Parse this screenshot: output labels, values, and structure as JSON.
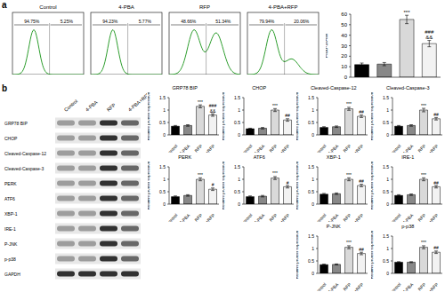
{
  "panel_labels": [
    "a",
    "b"
  ],
  "flow": [
    {
      "title": "Control",
      "left": "94.75%",
      "right": "5.25%"
    },
    {
      "title": "4-PBA",
      "left": "94.23%",
      "right": "5.77%"
    },
    {
      "title": "RFP",
      "left": "48.66%",
      "right": "51.34%"
    },
    {
      "title": "4-PBA+RFP",
      "left": "79.94%",
      "right": "20.06%"
    }
  ],
  "blot": {
    "columns": [
      "Control",
      "4-PBA",
      "RFP",
      "4-PBA+RFP"
    ],
    "rows": [
      "GRP78 BIP",
      "CHOP",
      "Cleaved-Caspase-12",
      "Cleaved-Caspase-3",
      "PERK",
      "ATF6",
      "XBP-1",
      "IRE-1",
      "P-JNK",
      "p-p38",
      "GAPDH"
    ]
  },
  "chart_data": [
    {
      "type": "bar",
      "categories": [
        null,
        null,
        null,
        null
      ],
      "values": [
        12,
        12.5,
        55,
        32
      ],
      "errors": [
        1.5,
        1.5,
        4,
        3
      ],
      "colors": [
        "#000000",
        "#888888",
        "#d9d9d9",
        "#f2f2f2"
      ],
      "ylabel": "Fluo-3/AM",
      "ylim": [
        0,
        60
      ],
      "yticks": [
        0,
        10,
        20,
        30,
        40,
        50,
        60
      ],
      "tick_labels": "y",
      "annotations": [
        null,
        null,
        [
          "***"
        ],
        [
          "###",
          "&&"
        ]
      ]
    },
    {
      "type": "bar",
      "title": "GRP78 BIP",
      "categories": [
        "Control",
        "4-PBA",
        "RFP",
        "4-PBA+RFP"
      ],
      "values": [
        0.35,
        0.38,
        1.15,
        0.8
      ],
      "errors": [
        0.03,
        0.03,
        0.06,
        0.05
      ],
      "colors": [
        "#000000",
        "#888888",
        "#d9d9d9",
        "#f2f2f2"
      ],
      "ylabel": "Relative protein expression",
      "ylim": [
        0,
        1.5
      ],
      "yticks": [
        0,
        0.5,
        1,
        1.5
      ],
      "annotations": [
        null,
        null,
        [
          "***"
        ],
        [
          "###",
          "&&"
        ]
      ]
    },
    {
      "type": "bar",
      "title": "CHOP",
      "categories": [
        "Control",
        "4-PBA",
        "RFP",
        "4-PBA+RFP"
      ],
      "values": [
        0.25,
        0.27,
        1.0,
        0.6
      ],
      "errors": [
        0.02,
        0.03,
        0.06,
        0.05
      ],
      "colors": [
        "#000000",
        "#888888",
        "#d9d9d9",
        "#f2f2f2"
      ],
      "ylabel": "Relative protein expression",
      "ylim": [
        0,
        1.5
      ],
      "yticks": [
        0,
        0.5,
        1,
        1.5
      ],
      "annotations": [
        null,
        null,
        [
          "***"
        ],
        [
          "##"
        ]
      ]
    },
    {
      "type": "bar",
      "title": "Cleaved-Caspase-12",
      "categories": [
        "Control",
        "4-PBA",
        "RFP",
        "4-PBA+RFP"
      ],
      "values": [
        0.3,
        0.33,
        1.05,
        0.75
      ],
      "errors": [
        0.03,
        0.03,
        0.06,
        0.05
      ],
      "colors": [
        "#000000",
        "#888888",
        "#d9d9d9",
        "#f2f2f2"
      ],
      "ylabel": "Relative protein expression",
      "ylim": [
        0,
        1.5
      ],
      "yticks": [
        0,
        0.5,
        1,
        1.5
      ],
      "annotations": [
        null,
        null,
        [
          "***"
        ],
        [
          "##"
        ]
      ]
    },
    {
      "type": "bar",
      "title": "Cleaved-Caspase-3",
      "categories": [
        "Control",
        "4-PBA",
        "RFP",
        "4-PBA+RFP"
      ],
      "values": [
        0.35,
        0.38,
        1.0,
        0.65
      ],
      "errors": [
        0.03,
        0.03,
        0.07,
        0.05
      ],
      "colors": [
        "#000000",
        "#888888",
        "#d9d9d9",
        "#f2f2f2"
      ],
      "ylabel": "Relative protein expression",
      "ylim": [
        0,
        1.5
      ],
      "yticks": [
        0,
        0.5,
        1,
        1.5
      ],
      "annotations": [
        null,
        null,
        [
          "***"
        ],
        [
          "##"
        ]
      ]
    },
    {
      "type": "bar",
      "title": "PERK",
      "categories": [
        "Control",
        "4-PBA",
        "RFP",
        "4-PBA+RFP"
      ],
      "values": [
        0.3,
        0.35,
        1.0,
        0.6
      ],
      "errors": [
        0.03,
        0.03,
        0.06,
        0.05
      ],
      "colors": [
        "#000000",
        "#888888",
        "#d9d9d9",
        "#f2f2f2"
      ],
      "ylabel": "Relative protein expression",
      "ylim": [
        0,
        1.5
      ],
      "yticks": [
        0,
        0.5,
        1,
        1.5
      ],
      "annotations": [
        null,
        null,
        [
          "***"
        ],
        [
          "#"
        ]
      ]
    },
    {
      "type": "bar",
      "title": "ATF6",
      "categories": [
        "Control",
        "4-PBA",
        "RFP",
        "4-PBA+RFP"
      ],
      "values": [
        0.3,
        0.32,
        1.05,
        0.7
      ],
      "errors": [
        0.03,
        0.03,
        0.06,
        0.05
      ],
      "colors": [
        "#000000",
        "#888888",
        "#d9d9d9",
        "#f2f2f2"
      ],
      "ylabel": "Relative protein expression",
      "ylim": [
        0,
        1.5
      ],
      "yticks": [
        0,
        0.5,
        1,
        1.5
      ],
      "annotations": [
        null,
        null,
        [
          "***"
        ],
        [
          "#"
        ]
      ]
    },
    {
      "type": "bar",
      "title": "XBP-1",
      "categories": [
        "Control",
        "4-PBA",
        "RFP",
        "4-PBA+RFP"
      ],
      "values": [
        0.4,
        0.42,
        1.0,
        0.75
      ],
      "errors": [
        0.03,
        0.03,
        0.06,
        0.05
      ],
      "colors": [
        "#000000",
        "#888888",
        "#d9d9d9",
        "#f2f2f2"
      ],
      "ylabel": "Relative protein expression",
      "ylim": [
        0,
        1.5
      ],
      "yticks": [
        0,
        0.5,
        1,
        1.5
      ],
      "annotations": [
        null,
        null,
        [
          "***"
        ],
        [
          "##"
        ]
      ]
    },
    {
      "type": "bar",
      "title": "IRE-1",
      "categories": [
        "Control",
        "4-PBA",
        "RFP",
        "4-PBA+RFP"
      ],
      "values": [
        0.35,
        0.38,
        1.0,
        0.7
      ],
      "errors": [
        0.03,
        0.03,
        0.06,
        0.05
      ],
      "colors": [
        "#000000",
        "#888888",
        "#d9d9d9",
        "#f2f2f2"
      ],
      "ylabel": "Relative protein expression",
      "ylim": [
        0,
        1.5
      ],
      "yticks": [
        0,
        0.5,
        1,
        1.5
      ],
      "annotations": [
        null,
        null,
        [
          "***"
        ],
        [
          "##"
        ]
      ]
    },
    {
      "type": "bar",
      "title": "P-JNK",
      "categories": [
        "Control",
        "4-PBA",
        "RFP",
        "4-PBA+RFP"
      ],
      "values": [
        0.35,
        0.36,
        1.05,
        0.8
      ],
      "errors": [
        0.02,
        0.02,
        0.06,
        0.05
      ],
      "colors": [
        "#000000",
        "#888888",
        "#d9d9d9",
        "#f2f2f2"
      ],
      "ylabel": "Relative protein expression",
      "ylim": [
        0,
        1.5
      ],
      "yticks": [
        0,
        0.5,
        1,
        1.5
      ],
      "annotations": [
        null,
        null,
        [
          "***"
        ],
        [
          "##"
        ]
      ]
    },
    {
      "type": "bar",
      "title": "p-p38",
      "categories": [
        "Control",
        "4-PBA",
        "RFP",
        "4-PBA+RFP"
      ],
      "values": [
        0.45,
        0.45,
        1.05,
        0.85
      ],
      "errors": [
        0.02,
        0.02,
        0.06,
        0.05
      ],
      "colors": [
        "#000000",
        "#888888",
        "#d9d9d9",
        "#f2f2f2"
      ],
      "ylabel": "Relative protein expression",
      "ylim": [
        0,
        1.5
      ],
      "yticks": [
        0,
        0.5,
        1,
        1.5
      ],
      "annotations": [
        null,
        null,
        [
          "***"
        ],
        [
          "##"
        ]
      ]
    }
  ]
}
